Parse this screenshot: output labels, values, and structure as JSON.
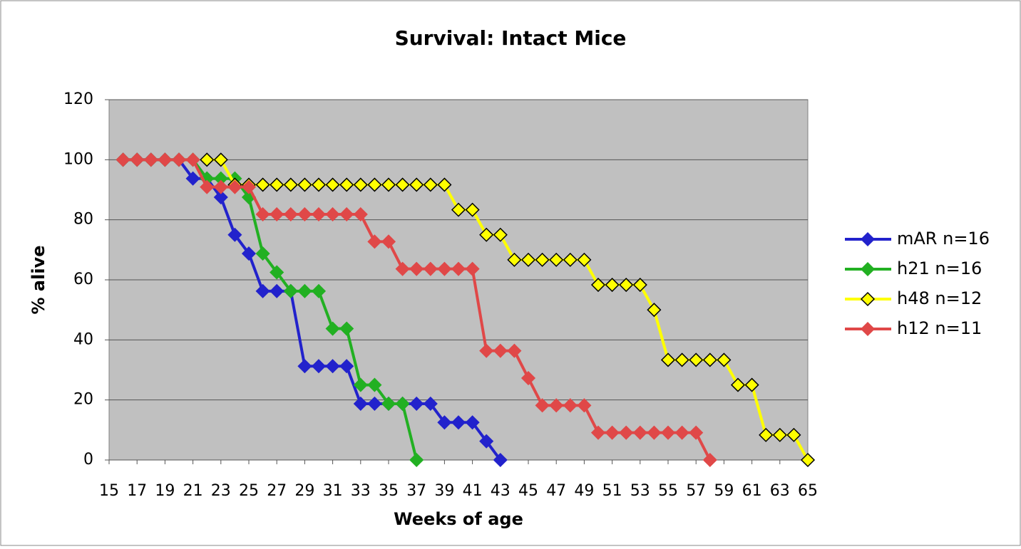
{
  "chart_data": {
    "type": "line",
    "title": "Survival: Intact Mice",
    "xlabel": "Weeks of age",
    "ylabel": "% alive",
    "xlim": [
      15,
      65
    ],
    "xticks": [
      15,
      17,
      19,
      21,
      23,
      25,
      27,
      29,
      31,
      33,
      35,
      37,
      39,
      41,
      43,
      45,
      47,
      49,
      51,
      53,
      55,
      57,
      59,
      61,
      63,
      65
    ],
    "ylim": [
      0,
      120
    ],
    "yticks": [
      0,
      20,
      40,
      60,
      80,
      100,
      120
    ],
    "grid": true,
    "legend": "right",
    "plot_background": "#c0c0c0",
    "series": [
      {
        "name": "mAR n=16",
        "color": "#2222cc",
        "marker_edgecolor": "#2222cc",
        "x": [
          16,
          17,
          18,
          19,
          20,
          21,
          22,
          23,
          24,
          25,
          26,
          27,
          28,
          29,
          30,
          31,
          32,
          33,
          34,
          35,
          36,
          37,
          38,
          39,
          40,
          41,
          42,
          43
        ],
        "values": [
          100,
          100,
          100,
          100,
          100,
          93.75,
          93.75,
          87.5,
          75,
          68.75,
          56.25,
          56.25,
          56.25,
          31.25,
          31.25,
          31.25,
          31.25,
          18.75,
          18.75,
          18.75,
          18.75,
          18.75,
          18.75,
          12.5,
          12.5,
          12.5,
          6.25,
          0
        ]
      },
      {
        "name": "h21 n=16",
        "color": "#22b022",
        "marker_edgecolor": "#22b022",
        "x": [
          16,
          17,
          18,
          19,
          20,
          21,
          22,
          23,
          24,
          25,
          26,
          27,
          28,
          29,
          30,
          31,
          32,
          33,
          34,
          35,
          36,
          37
        ],
        "values": [
          100,
          100,
          100,
          100,
          100,
          100,
          93.75,
          93.75,
          93.75,
          87.5,
          68.75,
          62.5,
          56.25,
          56.25,
          56.25,
          43.75,
          43.75,
          25,
          25,
          18.75,
          18.75,
          0
        ]
      },
      {
        "name": "h48 n=12",
        "color": "#ffff00",
        "marker_edgecolor": "#000000",
        "x": [
          22,
          23,
          24,
          25,
          26,
          27,
          28,
          29,
          30,
          31,
          32,
          33,
          34,
          35,
          36,
          37,
          38,
          39,
          40,
          41,
          42,
          43,
          44,
          45,
          46,
          47,
          48,
          49,
          50,
          51,
          52,
          53,
          54,
          55,
          56,
          57,
          58,
          59,
          60,
          61,
          62,
          63,
          64,
          65
        ],
        "values": [
          100,
          100,
          91.67,
          91.67,
          91.67,
          91.67,
          91.67,
          91.67,
          91.67,
          91.67,
          91.67,
          91.67,
          91.67,
          91.67,
          91.67,
          91.67,
          91.67,
          91.67,
          83.33,
          83.33,
          75,
          75,
          66.67,
          66.67,
          66.67,
          66.67,
          66.67,
          66.67,
          58.33,
          58.33,
          58.33,
          58.33,
          50,
          33.33,
          33.33,
          33.33,
          33.33,
          33.33,
          25,
          25,
          8.33,
          8.33,
          8.33,
          0
        ]
      },
      {
        "name": "h12 n=11",
        "color": "#e04848",
        "marker_edgecolor": "#e04848",
        "x": [
          16,
          17,
          18,
          19,
          20,
          21,
          22,
          23,
          24,
          25,
          26,
          27,
          28,
          29,
          30,
          31,
          32,
          33,
          34,
          35,
          36,
          37,
          38,
          39,
          40,
          41,
          42,
          43,
          44,
          45,
          46,
          47,
          48,
          49,
          50,
          51,
          52,
          53,
          54,
          55,
          56,
          57,
          58
        ],
        "values": [
          100,
          100,
          100,
          100,
          100,
          100,
          90.91,
          90.91,
          90.91,
          90.91,
          81.82,
          81.82,
          81.82,
          81.82,
          81.82,
          81.82,
          81.82,
          81.82,
          72.73,
          72.73,
          63.64,
          63.64,
          63.64,
          63.64,
          63.64,
          63.64,
          36.36,
          36.36,
          36.36,
          27.27,
          18.18,
          18.18,
          18.18,
          18.18,
          9.09,
          9.09,
          9.09,
          9.09,
          9.09,
          9.09,
          9.09,
          9.09,
          0
        ]
      }
    ]
  }
}
